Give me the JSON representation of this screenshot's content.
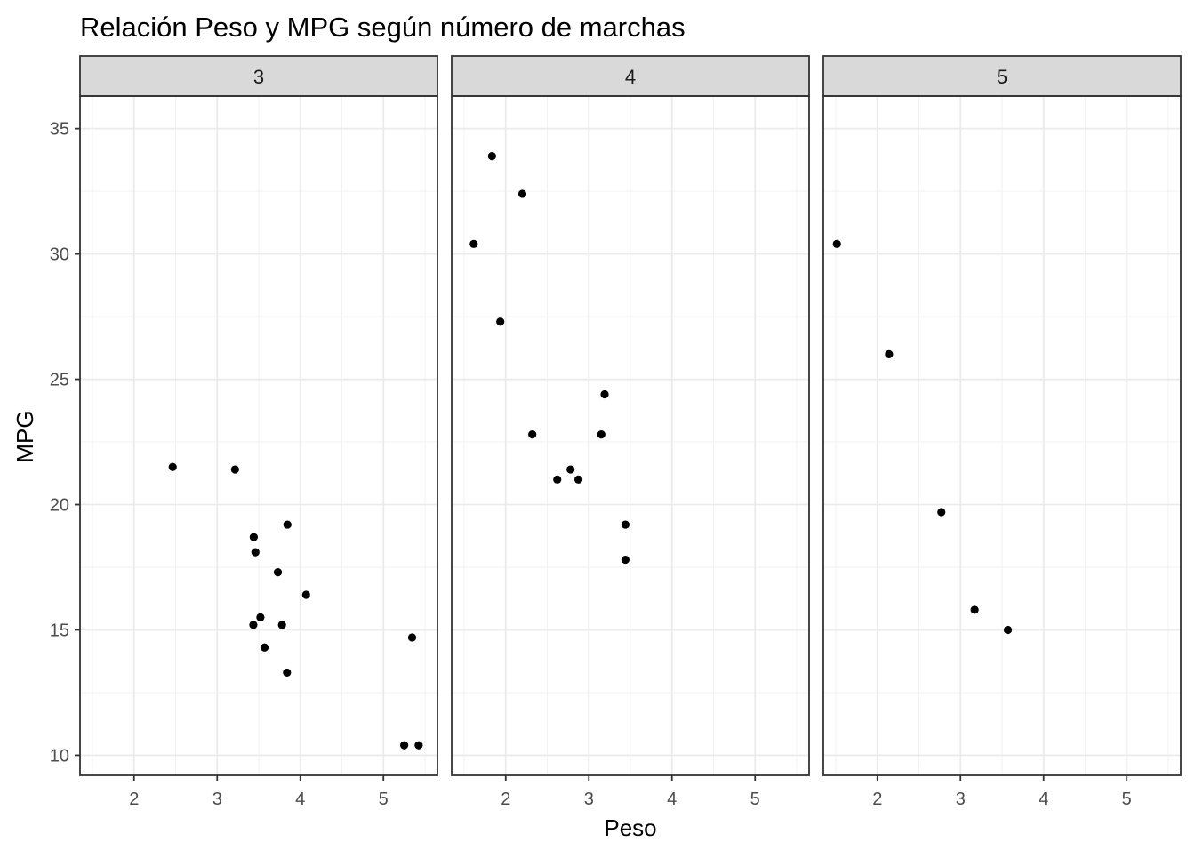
{
  "chart_data": {
    "type": "scatter",
    "title": "Relación Peso y MPG según número de marchas",
    "xlabel": "Peso",
    "ylabel": "MPG",
    "xlim": [
      1.35,
      5.65
    ],
    "ylim": [
      9.2,
      36.3
    ],
    "x_ticks": [
      2,
      3,
      4,
      5
    ],
    "y_ticks": [
      10,
      15,
      20,
      25,
      30,
      35
    ],
    "grid": true,
    "legend": "none",
    "point_color": "#000000",
    "strip_fill": "#d9d9d9",
    "panels": [
      {
        "label": "3",
        "points": [
          {
            "x": 2.465,
            "y": 21.5
          },
          {
            "x": 3.215,
            "y": 21.4
          },
          {
            "x": 3.44,
            "y": 18.7
          },
          {
            "x": 3.46,
            "y": 18.1
          },
          {
            "x": 3.57,
            "y": 14.3
          },
          {
            "x": 4.07,
            "y": 16.4
          },
          {
            "x": 3.73,
            "y": 17.3
          },
          {
            "x": 3.78,
            "y": 15.2
          },
          {
            "x": 5.25,
            "y": 10.4
          },
          {
            "x": 5.424,
            "y": 10.4
          },
          {
            "x": 5.345,
            "y": 14.7
          },
          {
            "x": 3.52,
            "y": 15.5
          },
          {
            "x": 3.435,
            "y": 15.2
          },
          {
            "x": 3.84,
            "y": 13.3
          },
          {
            "x": 3.845,
            "y": 19.2
          }
        ]
      },
      {
        "label": "4",
        "points": [
          {
            "x": 2.62,
            "y": 21.0
          },
          {
            "x": 2.875,
            "y": 21.0
          },
          {
            "x": 2.32,
            "y": 22.8
          },
          {
            "x": 3.19,
            "y": 24.4
          },
          {
            "x": 3.15,
            "y": 22.8
          },
          {
            "x": 3.44,
            "y": 19.2
          },
          {
            "x": 3.44,
            "y": 17.8
          },
          {
            "x": 2.2,
            "y": 32.4
          },
          {
            "x": 1.615,
            "y": 30.4
          },
          {
            "x": 1.835,
            "y": 33.9
          },
          {
            "x": 1.935,
            "y": 27.3
          },
          {
            "x": 2.78,
            "y": 21.4
          }
        ]
      },
      {
        "label": "5",
        "points": [
          {
            "x": 2.14,
            "y": 26.0
          },
          {
            "x": 1.513,
            "y": 30.4
          },
          {
            "x": 3.17,
            "y": 15.8
          },
          {
            "x": 2.77,
            "y": 19.7
          },
          {
            "x": 3.57,
            "y": 15.0
          }
        ]
      }
    ]
  }
}
